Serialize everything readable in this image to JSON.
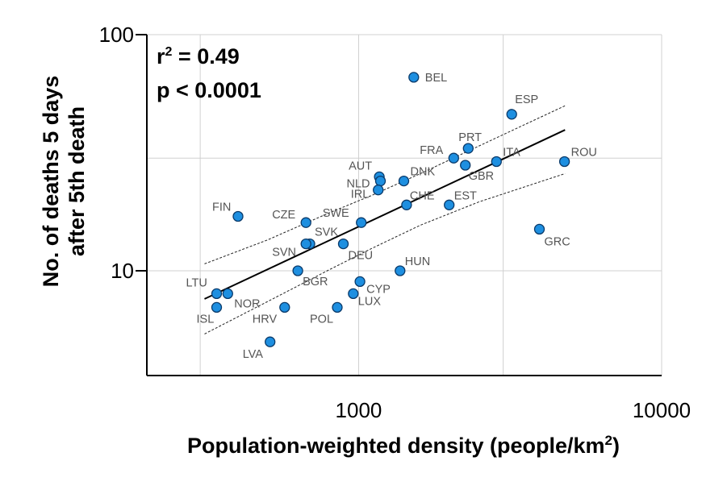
{
  "chart_data": {
    "type": "scatter",
    "xscale": "log",
    "yscale": "log",
    "xlabel": "Population-weighted density (people/km",
    "xlabel_sup": "2",
    "xlabel_end": ")",
    "ylabel_line1": "No. of deaths 5 days",
    "ylabel_line2": "after 5th death",
    "xlim": [
      200,
      10000
    ],
    "ylim": [
      3.6,
      100
    ],
    "x_ticks": [
      {
        "value": 1000,
        "label": "1000"
      },
      {
        "value": 10000,
        "label": "10000"
      }
    ],
    "y_ticks": [
      {
        "value": 10,
        "label": "10"
      },
      {
        "value": 100,
        "label": "100"
      }
    ],
    "x_grid": [
      200,
      300,
      1000,
      3000,
      10000
    ],
    "y_grid": [
      10,
      30,
      100
    ],
    "stats": {
      "r2_prefix": "r",
      "r2_sup": "2",
      "r2_value": " = 0.49",
      "p": "p < 0.0001"
    },
    "regression": {
      "x": [
        310,
        4800
      ],
      "y": [
        7.6,
        39.5
      ]
    },
    "ci_upper": {
      "x": [
        310,
        500,
        800,
        1100,
        1600,
        2500,
        4800
      ],
      "y": [
        10.7,
        13.5,
        17.6,
        20.8,
        25.8,
        33.8,
        50.0
      ]
    },
    "ci_lower": {
      "x": [
        310,
        500,
        800,
        1100,
        1600,
        2500,
        4800
      ],
      "y": [
        5.4,
        7.4,
        10.1,
        12.4,
        15.6,
        19.6,
        25.8
      ]
    },
    "points": [
      {
        "label": "BEL",
        "x": 1520,
        "y": 66
      },
      {
        "label": "ESP",
        "x": 3200,
        "y": 46
      },
      {
        "label": "PRT",
        "x": 2300,
        "y": 33
      },
      {
        "label": "FRA",
        "x": 2060,
        "y": 30
      },
      {
        "label": "ITA",
        "x": 2850,
        "y": 29
      },
      {
        "label": "ROU",
        "x": 4780,
        "y": 29
      },
      {
        "label": "GBR",
        "x": 2250,
        "y": 28
      },
      {
        "label": "AUT",
        "x": 1170,
        "y": 25
      },
      {
        "label": "DNK",
        "x": 1410,
        "y": 24
      },
      {
        "label": "NLD",
        "x": 1180,
        "y": 24
      },
      {
        "label": "IRL",
        "x": 1160,
        "y": 22
      },
      {
        "label": "CHE",
        "x": 1440,
        "y": 19
      },
      {
        "label": "EST",
        "x": 1990,
        "y": 19
      },
      {
        "label": "FIN",
        "x": 400,
        "y": 17
      },
      {
        "label": "CZE",
        "x": 670,
        "y": 16
      },
      {
        "label": "SWE",
        "x": 1020,
        "y": 16
      },
      {
        "label": "GRC",
        "x": 3950,
        "y": 15
      },
      {
        "label": "SVK",
        "x": 690,
        "y": 13
      },
      {
        "label": "SVN",
        "x": 670,
        "y": 13
      },
      {
        "label": "DEU",
        "x": 890,
        "y": 13
      },
      {
        "label": "HUN",
        "x": 1370,
        "y": 10
      },
      {
        "label": "BGR",
        "x": 630,
        "y": 10
      },
      {
        "label": "CYP",
        "x": 1010,
        "y": 9
      },
      {
        "label": "LTU",
        "x": 340,
        "y": 8
      },
      {
        "label": "NOR",
        "x": 370,
        "y": 8
      },
      {
        "label": "LUX",
        "x": 960,
        "y": 8
      },
      {
        "label": "ISL",
        "x": 340,
        "y": 7
      },
      {
        "label": "HRV",
        "x": 570,
        "y": 7
      },
      {
        "label": "POL",
        "x": 850,
        "y": 7
      },
      {
        "label": "LVA",
        "x": 510,
        "y": 5
      }
    ]
  }
}
